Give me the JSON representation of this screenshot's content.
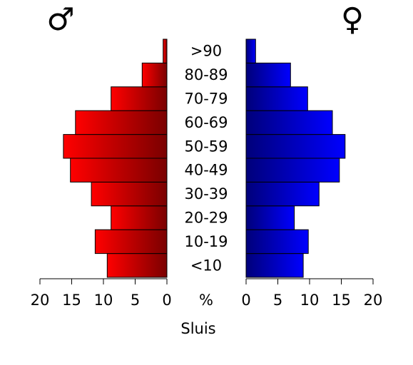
{
  "chart_data": {
    "type": "bar",
    "orientation": "horizontal-mirrored",
    "categories": [
      "<10",
      "10-19",
      "20-29",
      "30-39",
      "40-49",
      "50-59",
      "60-69",
      "70-79",
      "80-89",
      ">90"
    ],
    "series": [
      {
        "name": "♂",
        "values": [
          9.4,
          11.3,
          8.8,
          11.9,
          15.2,
          16.3,
          14.4,
          8.8,
          3.9,
          0.6
        ],
        "color_light": "#ff0000",
        "color_dark": "#7a0000"
      },
      {
        "name": "♀",
        "values": [
          9.0,
          9.8,
          7.6,
          11.5,
          14.7,
          15.6,
          13.6,
          9.7,
          7.0,
          1.5
        ],
        "color_light": "#0000ff",
        "color_dark": "#00007a"
      }
    ],
    "x_ticks": [
      "20",
      "15",
      "10",
      "5",
      "0"
    ],
    "x_ticks_right": [
      "0",
      "5",
      "10",
      "15",
      "20"
    ],
    "xlim": [
      0,
      20
    ],
    "unit_label": "%",
    "xlabel": "Sluis",
    "male_symbol": "♂",
    "female_symbol": "♀",
    "grid": false,
    "legend": "none"
  }
}
